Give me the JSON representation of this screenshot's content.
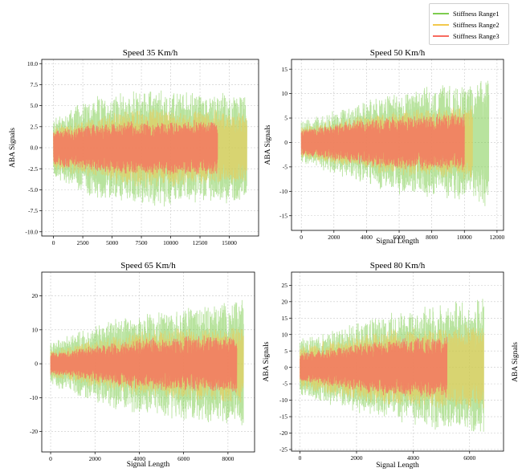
{
  "colors": {
    "range1": "#7dcc4e",
    "range2": "#f2c94c",
    "range3": "#f86b5f",
    "grid": "#c8c8c8",
    "axis": "#000000"
  },
  "legend": {
    "placement": "top-right",
    "items": [
      {
        "label": "Stiffness Range1",
        "color": "#7dcc4e"
      },
      {
        "label": "Stiffness Range2",
        "color": "#f2c94c"
      },
      {
        "label": "Stiffness Range3",
        "color": "#f86b5f"
      }
    ]
  },
  "chart_data": [
    {
      "type": "line",
      "title": "Speed 35 Km/h",
      "xlabel": "",
      "ylabel": "ABA Signals",
      "xlim": [
        -1000,
        17500
      ],
      "ylim": [
        -10.5,
        10.5
      ],
      "xticks": [
        0,
        2500,
        5000,
        7500,
        10000,
        12500,
        15000
      ],
      "yticks": [
        -10.0,
        -7.5,
        -5.0,
        -2.5,
        0.0,
        2.5,
        5.0,
        7.5,
        10.0
      ],
      "ytick_labels": [
        "-10.0",
        "-7.5",
        "-5.0",
        "-2.5",
        "0.0",
        "2.5",
        "5.0",
        "7.5",
        "10.0"
      ],
      "grid": true,
      "series": [
        {
          "name": "Stiffness Range1",
          "x_max": 16500,
          "amplitude": [
            [
              0,
              3.5
            ],
            [
              3000,
              5.5
            ],
            [
              8000,
              6.5
            ],
            [
              16500,
              6.0
            ]
          ]
        },
        {
          "name": "Stiffness Range2",
          "x_max": 16500,
          "amplitude": [
            [
              0,
              2.5
            ],
            [
              7500,
              4.5
            ],
            [
              16500,
              4.0
            ]
          ]
        },
        {
          "name": "Stiffness Range3",
          "x_max": 14000,
          "amplitude": [
            [
              0,
              2.0
            ],
            [
              6000,
              3.0
            ],
            [
              14000,
              3.0
            ]
          ]
        }
      ]
    },
    {
      "type": "line",
      "title": "Speed 50 Km/h",
      "xlabel": "Signal Length",
      "ylabel": "ABA Signals",
      "xlim": [
        -600,
        12400
      ],
      "ylim": [
        -18,
        17
      ],
      "xticks": [
        0,
        2000,
        4000,
        6000,
        8000,
        10000,
        12000
      ],
      "yticks": [
        -15,
        -10,
        -5,
        0,
        5,
        10,
        15
      ],
      "ytick_labels": [
        "-15",
        "-10",
        "-5",
        "0",
        "5",
        "10",
        "15"
      ],
      "grid": true,
      "series": [
        {
          "name": "Stiffness Range1",
          "x_max": 11500,
          "amplitude": [
            [
              0,
              4.0
            ],
            [
              3000,
              7.0
            ],
            [
              6000,
              10.0
            ],
            [
              11500,
              12.0
            ]
          ]
        },
        {
          "name": "Stiffness Range2",
          "x_max": 10500,
          "amplitude": [
            [
              0,
              3.0
            ],
            [
              5000,
              6.0
            ],
            [
              10500,
              7.0
            ]
          ]
        },
        {
          "name": "Stiffness Range3",
          "x_max": 10000,
          "amplitude": [
            [
              0,
              2.5
            ],
            [
              5000,
              5.0
            ],
            [
              10000,
              5.5
            ]
          ]
        }
      ]
    },
    {
      "type": "line",
      "title": "Speed 65 Km/h",
      "xlabel": "Signal Length",
      "ylabel": "",
      "xlim": [
        -400,
        9200
      ],
      "ylim": [
        -26,
        27
      ],
      "xticks": [
        0,
        2000,
        4000,
        6000,
        8000
      ],
      "yticks": [
        -20,
        -10,
        0,
        10,
        20
      ],
      "ytick_labels": [
        "-20",
        "-10",
        "0",
        "10",
        "20"
      ],
      "grid": true,
      "series": [
        {
          "name": "Stiffness Range1",
          "x_max": 8700,
          "amplitude": [
            [
              0,
              6.0
            ],
            [
              3000,
              13.0
            ],
            [
              8700,
              18.0
            ]
          ]
        },
        {
          "name": "Stiffness Range2",
          "x_max": 8700,
          "amplitude": [
            [
              0,
              4.0
            ],
            [
              4000,
              9.0
            ],
            [
              8700,
              11.0
            ]
          ]
        },
        {
          "name": "Stiffness Range3",
          "x_max": 8400,
          "amplitude": [
            [
              0,
              3.0
            ],
            [
              4000,
              7.0
            ],
            [
              8400,
              8.0
            ]
          ]
        }
      ]
    },
    {
      "type": "line",
      "title": "Speed 80 Km/h",
      "xlabel": "Signal Length",
      "ylabel": "ABA Signals",
      "xlim": [
        -300,
        7200
      ],
      "ylim": [
        -25.5,
        29
      ],
      "xticks": [
        0,
        2000,
        4000,
        6000
      ],
      "yticks": [
        -25,
        -20,
        -15,
        -10,
        -5,
        0,
        5,
        10,
        15,
        20,
        25
      ],
      "ytick_labels": [
        "-25",
        "-20",
        "-15",
        "-10",
        "-5",
        "0",
        "5",
        "10",
        "15",
        "20",
        "25"
      ],
      "grid": true,
      "series": [
        {
          "name": "Stiffness Range1",
          "x_max": 6500,
          "amplitude": [
            [
              0,
              8.0
            ],
            [
              3000,
              15.0
            ],
            [
              6500,
              20.0
            ]
          ]
        },
        {
          "name": "Stiffness Range2",
          "x_max": 6500,
          "amplitude": [
            [
              0,
              6.0
            ],
            [
              3000,
              11.0
            ],
            [
              6500,
              12.0
            ]
          ]
        },
        {
          "name": "Stiffness Range3",
          "x_max": 5200,
          "amplitude": [
            [
              0,
              4.0
            ],
            [
              3000,
              8.0
            ],
            [
              5200,
              9.0
            ]
          ]
        }
      ]
    }
  ],
  "extra_labels": {
    "right_ylabel": "ABA Signals"
  }
}
